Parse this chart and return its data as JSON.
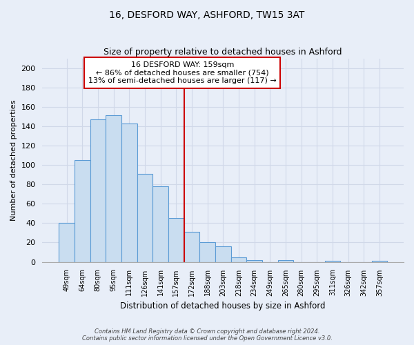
{
  "title": "16, DESFORD WAY, ASHFORD, TW15 3AT",
  "subtitle": "Size of property relative to detached houses in Ashford",
  "xlabel": "Distribution of detached houses by size in Ashford",
  "ylabel": "Number of detached properties",
  "bar_labels": [
    "49sqm",
    "64sqm",
    "80sqm",
    "95sqm",
    "111sqm",
    "126sqm",
    "141sqm",
    "157sqm",
    "172sqm",
    "188sqm",
    "203sqm",
    "218sqm",
    "234sqm",
    "249sqm",
    "265sqm",
    "280sqm",
    "295sqm",
    "311sqm",
    "326sqm",
    "342sqm",
    "357sqm"
  ],
  "bar_values": [
    40,
    105,
    147,
    151,
    143,
    91,
    78,
    45,
    31,
    20,
    16,
    5,
    2,
    0,
    2,
    0,
    0,
    1,
    0,
    0,
    1
  ],
  "bar_color": "#c9ddf0",
  "bar_edge_color": "#5b9bd5",
  "vline_index": 7,
  "vline_color": "#cc0000",
  "annotation_title": "16 DESFORD WAY: 159sqm",
  "annotation_line1": "← 86% of detached houses are smaller (754)",
  "annotation_line2": "13% of semi-detached houses are larger (117) →",
  "annotation_box_color": "#ffffff",
  "annotation_box_edge": "#cc0000",
  "ylim": [
    0,
    210
  ],
  "yticks": [
    0,
    20,
    40,
    60,
    80,
    100,
    120,
    140,
    160,
    180,
    200
  ],
  "footer1": "Contains HM Land Registry data © Crown copyright and database right 2024.",
  "footer2": "Contains public sector information licensed under the Open Government Licence v3.0.",
  "bg_color": "#e8eef8",
  "grid_color": "#d0d8e8",
  "title_fontsize": 10,
  "subtitle_fontsize": 9
}
